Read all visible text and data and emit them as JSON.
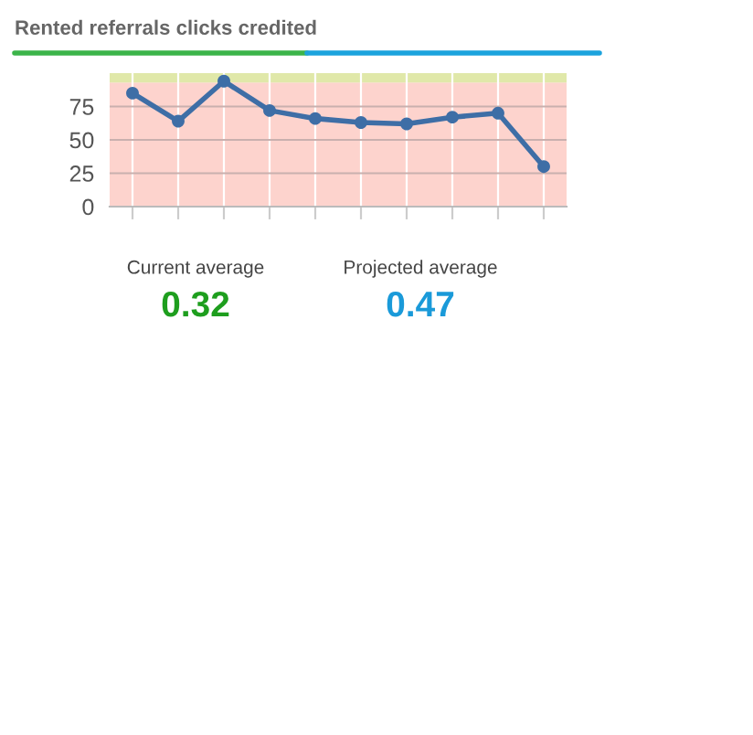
{
  "chart_data": {
    "type": "line",
    "title": "Rented referrals clicks credited",
    "categories": [
      null,
      null,
      null,
      null,
      null,
      null,
      null,
      null,
      null,
      null
    ],
    "series": [
      {
        "color": "#3e6ea6",
        "values": [
          85,
          64,
          94,
          72,
          66,
          63,
          62,
          67,
          70,
          30
        ]
      }
    ],
    "ylim": [
      0,
      100
    ],
    "yticks": [
      0,
      25,
      50,
      75
    ],
    "grid": true,
    "marker": "circle",
    "line_style": "solid",
    "bands": [
      {
        "axis": "y",
        "from": 0,
        "to": 93,
        "color": "#fdd3cd"
      },
      {
        "axis": "y",
        "from": 93,
        "to": 100,
        "color": "#e0e8a9"
      }
    ],
    "annotations": [
      "Current average",
      "0.32",
      "Projected average",
      "0.47"
    ]
  }
}
